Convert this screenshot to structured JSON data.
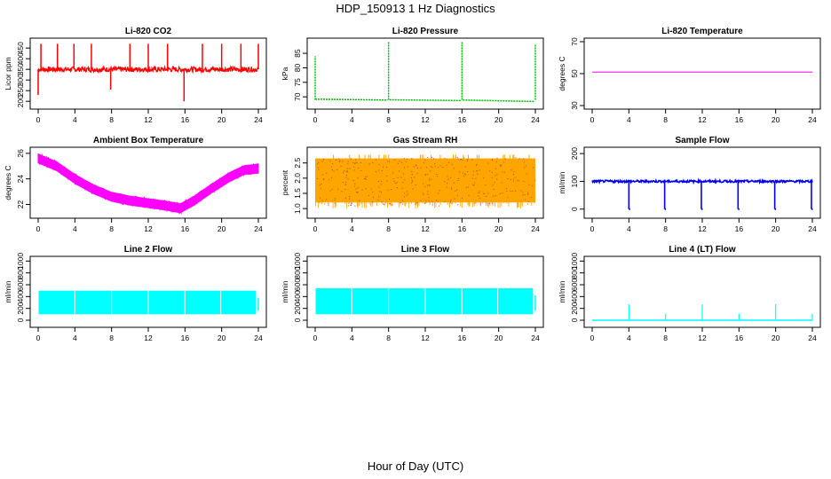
{
  "page": {
    "title": "HDP_150913  1 Hz Diagnostics",
    "xlabel": "Hour of Day (UTC)"
  },
  "chart_data": [
    {
      "id": "co2",
      "type": "line",
      "title": "Li-820 CO2",
      "ylabel": "Licor ppm",
      "xlim": [
        0,
        24
      ],
      "xticks": [
        0,
        4,
        8,
        12,
        16,
        20,
        24
      ],
      "ylim": [
        180,
        480
      ],
      "yticks": [
        200,
        250,
        300,
        350,
        400,
        450
      ],
      "color": "#ff0000",
      "baseline": 350,
      "noise": 12,
      "spikes": [
        {
          "x": 0.0,
          "y": 230
        },
        {
          "x": 0.3,
          "y": 470
        },
        {
          "x": 2.1,
          "y": 470
        },
        {
          "x": 3.9,
          "y": 470
        },
        {
          "x": 5.8,
          "y": 470
        },
        {
          "x": 7.9,
          "y": 255
        },
        {
          "x": 10.0,
          "y": 470
        },
        {
          "x": 12.0,
          "y": 470
        },
        {
          "x": 14.1,
          "y": 470
        },
        {
          "x": 15.9,
          "y": 200
        },
        {
          "x": 17.9,
          "y": 470
        },
        {
          "x": 20.0,
          "y": 470
        },
        {
          "x": 22.1,
          "y": 470
        },
        {
          "x": 24.0,
          "y": 470
        }
      ]
    },
    {
      "id": "pressure",
      "type": "line",
      "title": "Li-820 Pressure",
      "ylabel": "kPa",
      "xlim": [
        0,
        24
      ],
      "xticks": [
        0,
        4,
        8,
        12,
        16,
        20,
        24
      ],
      "ylim": [
        67,
        89
      ],
      "yticks": [
        70,
        75,
        80,
        85
      ],
      "color": "#00bb00",
      "segments": [
        {
          "x0": 0.0,
          "x1": 7.9,
          "y0": 69.2,
          "y1": 68.9
        },
        {
          "x0": 8.1,
          "x1": 15.9,
          "y0": 69.0,
          "y1": 68.7
        },
        {
          "x0": 16.1,
          "x1": 23.9,
          "y0": 68.9,
          "y1": 68.4
        }
      ],
      "spikes": [
        {
          "x": 0.0,
          "y": 84
        },
        {
          "x": 8.0,
          "y": 89
        },
        {
          "x": 16.0,
          "y": 89
        },
        {
          "x": 24.0,
          "y": 88
        }
      ]
    },
    {
      "id": "temperature",
      "type": "line",
      "title": "Li-820 Temperature",
      "ylabel": "degrees C",
      "xlim": [
        0,
        24
      ],
      "xticks": [
        0,
        4,
        8,
        12,
        16,
        20,
        24
      ],
      "ylim": [
        30,
        70
      ],
      "yticks": [
        30,
        50,
        70
      ],
      "color": "#ff00ff",
      "value": 51
    },
    {
      "id": "ambient",
      "type": "line",
      "title": "Ambient Box Temperature",
      "ylabel": "degrees C",
      "xlim": [
        0,
        24
      ],
      "xticks": [
        0,
        4,
        8,
        12,
        16,
        20,
        24
      ],
      "ylim": [
        21.2,
        26.2
      ],
      "yticks": [
        22,
        24,
        26
      ],
      "color": "#ff00ff",
      "noise": 0.35,
      "points": [
        {
          "x": 0,
          "y": 25.6
        },
        {
          "x": 2,
          "y": 25.0
        },
        {
          "x": 4,
          "y": 24.0
        },
        {
          "x": 6,
          "y": 23.2
        },
        {
          "x": 8,
          "y": 22.6
        },
        {
          "x": 10,
          "y": 22.3
        },
        {
          "x": 12,
          "y": 22.1
        },
        {
          "x": 14,
          "y": 21.9
        },
        {
          "x": 15.5,
          "y": 21.7
        },
        {
          "x": 17,
          "y": 22.3
        },
        {
          "x": 19,
          "y": 23.3
        },
        {
          "x": 21,
          "y": 24.2
        },
        {
          "x": 22.5,
          "y": 24.7
        },
        {
          "x": 24,
          "y": 24.8
        }
      ]
    },
    {
      "id": "rh",
      "type": "line",
      "title": "Gas Stream RH",
      "ylabel": "percent",
      "xlim": [
        0,
        24
      ],
      "xticks": [
        0,
        4,
        8,
        12,
        16,
        20,
        24
      ],
      "ylim": [
        0.8,
        2.9
      ],
      "yticks": [
        1.0,
        1.5,
        2.0,
        2.5
      ],
      "color": "#ffa500",
      "dotcolor": "#a0522d",
      "low": 1.0,
      "high": 2.65
    },
    {
      "id": "sample_flow",
      "type": "line",
      "title": "Sample Flow",
      "ylabel": "ml/min",
      "xlim": [
        0,
        24
      ],
      "xticks": [
        0,
        4,
        8,
        12,
        16,
        20,
        24
      ],
      "ylim": [
        -20,
        210
      ],
      "yticks": [
        0,
        100,
        200
      ],
      "color": "#0000ff",
      "baseline": 100,
      "noise": 4,
      "dips": [
        {
          "x": 4.0,
          "y": 0
        },
        {
          "x": 7.9,
          "y": 0
        },
        {
          "x": 11.9,
          "y": 0
        },
        {
          "x": 15.9,
          "y": 0
        },
        {
          "x": 19.9,
          "y": 0
        },
        {
          "x": 23.9,
          "y": 0
        }
      ]
    },
    {
      "id": "line2",
      "type": "line",
      "title": "Line 2 Flow",
      "ylabel": "ml/min",
      "xlim": [
        0,
        24
      ],
      "xticks": [
        0,
        4,
        8,
        12,
        16,
        20,
        24
      ],
      "ylim": [
        -60,
        1020
      ],
      "yticks": [
        0,
        200,
        400,
        600,
        800,
        1000
      ],
      "color": "#00ffff",
      "low": 100,
      "high": 500,
      "gaps": [
        4.0,
        8.0,
        12.0,
        16.0,
        19.9
      ]
    },
    {
      "id": "line3",
      "type": "line",
      "title": "Line 3 Flow",
      "ylabel": "ml/min",
      "xlim": [
        0,
        24
      ],
      "xticks": [
        0,
        4,
        8,
        12,
        16,
        20,
        24
      ],
      "ylim": [
        -60,
        1020
      ],
      "yticks": [
        0,
        200,
        400,
        600,
        800,
        1000
      ],
      "color": "#00ffff",
      "low": 100,
      "high": 540,
      "gaps": [
        4.0,
        8.0,
        12.0,
        16.0,
        19.9
      ]
    },
    {
      "id": "line4",
      "type": "line",
      "title": "Line 4 (LT) Flow",
      "ylabel": "ml/min",
      "xlim": [
        0,
        24
      ],
      "xticks": [
        0,
        4,
        8,
        12,
        16,
        20,
        24
      ],
      "ylim": [
        -60,
        1020
      ],
      "yticks": [
        0,
        200,
        400,
        600,
        800,
        1000
      ],
      "color": "#00ffff",
      "baseline": 0,
      "spikes": [
        {
          "x": 4.0,
          "y": 270
        },
        {
          "x": 8.0,
          "y": 110
        },
        {
          "x": 12.0,
          "y": 270
        },
        {
          "x": 16.0,
          "y": 110
        },
        {
          "x": 20.0,
          "y": 270
        },
        {
          "x": 24.0,
          "y": 110
        }
      ]
    }
  ]
}
